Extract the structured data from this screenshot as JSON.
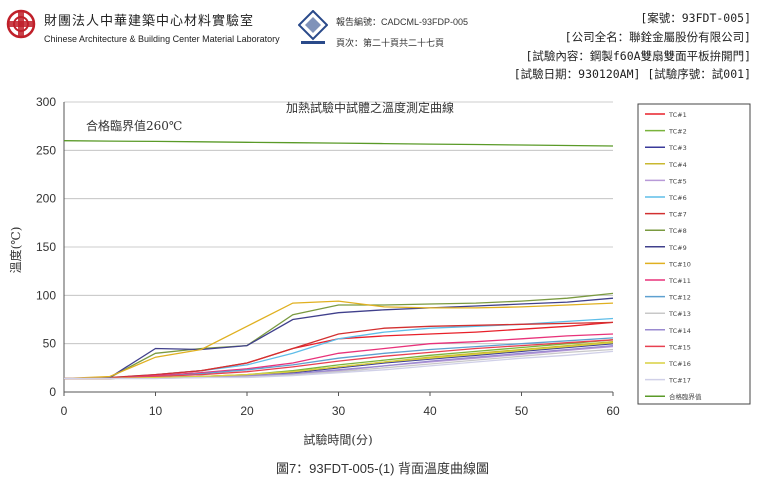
{
  "header": {
    "org_cn": "財團法人中華建築中心材料實驗室",
    "org_en": "Chinese Architecture & Building Center Material Laboratory",
    "report_no": "報告編號：CADCML-93FDP-005",
    "page_info": "頁次：第二十頁共二十七頁",
    "case_no": "[案號：93FDT-005]",
    "company": "[公司全名：聯銓金屬股份有限公司]",
    "test_content": "[試驗內容：鋼製f60A雙扇雙面平板拚開門]",
    "test_date": "[試驗日期：930120AM] [試驗序號：試001]"
  },
  "caption": "圖7：93FDT-005-(1) 背面溫度曲線圖",
  "colors": {
    "grid": "#bbbbbb",
    "axis": "#555555",
    "limit": "#5a9a28"
  },
  "chart_data": {
    "type": "line",
    "title": "加熱試驗中試體之溫度測定曲線",
    "xlabel": "試驗時間(分)",
    "ylabel": "溫度(℃)",
    "xlim": [
      0,
      60
    ],
    "ylim": [
      0,
      300
    ],
    "xticks": [
      0,
      10,
      20,
      30,
      40,
      50,
      60
    ],
    "yticks": [
      0,
      50,
      100,
      150,
      200,
      250,
      300
    ],
    "grid": "horizontal",
    "legend_position": "right",
    "annotation": "合格臨界值260℃",
    "x": [
      0,
      5,
      10,
      15,
      20,
      25,
      30,
      35,
      40,
      45,
      50,
      55,
      60
    ],
    "series": [
      {
        "name": "TC#1",
        "color": "#e8202a",
        "values": [
          14,
          14,
          18,
          22,
          30,
          45,
          55,
          58,
          60,
          62,
          65,
          68,
          72
        ]
      },
      {
        "name": "TC#2",
        "color": "#7ab33c",
        "values": [
          14,
          14,
          15,
          16,
          18,
          22,
          28,
          33,
          38,
          42,
          46,
          50,
          54
        ]
      },
      {
        "name": "TC#3",
        "color": "#3a3a9a",
        "values": [
          14,
          14,
          15,
          16,
          17,
          20,
          25,
          30,
          34,
          38,
          42,
          46,
          50
        ]
      },
      {
        "name": "TC#4",
        "color": "#c9b830",
        "values": [
          14,
          14,
          15,
          16,
          18,
          21,
          26,
          31,
          36,
          40,
          44,
          48,
          52
        ]
      },
      {
        "name": "TC#5",
        "color": "#b89ad8",
        "values": [
          14,
          14,
          15,
          15,
          16,
          18,
          22,
          27,
          31,
          35,
          39,
          43,
          47
        ]
      },
      {
        "name": "TC#6",
        "color": "#5fbde8",
        "values": [
          14,
          15,
          18,
          22,
          28,
          40,
          55,
          62,
          66,
          68,
          70,
          73,
          76
        ]
      },
      {
        "name": "TC#7",
        "color": "#d23030",
        "values": [
          14,
          15,
          18,
          22,
          30,
          45,
          60,
          66,
          68,
          69,
          70,
          71,
          72
        ]
      },
      {
        "name": "TC#8",
        "color": "#7a9a40",
        "values": [
          14,
          15,
          40,
          45,
          48,
          80,
          90,
          90,
          91,
          92,
          94,
          97,
          102
        ]
      },
      {
        "name": "TC#9",
        "color": "#40408c",
        "values": [
          14,
          15,
          45,
          44,
          48,
          75,
          82,
          85,
          87,
          89,
          91,
          93,
          97
        ]
      },
      {
        "name": "TC#10",
        "color": "#e0b020",
        "values": [
          14,
          16,
          36,
          44,
          68,
          92,
          94,
          88,
          87,
          87,
          88,
          90,
          92
        ]
      },
      {
        "name": "TC#11",
        "color": "#e8327a",
        "values": [
          14,
          14,
          17,
          20,
          24,
          30,
          40,
          45,
          50,
          52,
          55,
          58,
          60
        ]
      },
      {
        "name": "TC#12",
        "color": "#5ea0d0",
        "values": [
          14,
          14,
          16,
          19,
          23,
          28,
          35,
          40,
          44,
          47,
          50,
          53,
          56
        ]
      },
      {
        "name": "TC#13",
        "color": "#c8c8c8",
        "values": [
          14,
          14,
          14,
          15,
          16,
          18,
          21,
          25,
          29,
          33,
          37,
          41,
          44
        ]
      },
      {
        "name": "TC#14",
        "color": "#9a8ad0",
        "values": [
          14,
          14,
          15,
          16,
          17,
          19,
          23,
          27,
          32,
          36,
          40,
          44,
          48
        ]
      },
      {
        "name": "TC#15",
        "color": "#e84050",
        "values": [
          14,
          14,
          16,
          18,
          21,
          26,
          32,
          37,
          41,
          45,
          48,
          51,
          54
        ]
      },
      {
        "name": "TC#16",
        "color": "#d8d040",
        "values": [
          14,
          14,
          15,
          16,
          18,
          21,
          26,
          31,
          35,
          39,
          43,
          47,
          51
        ]
      },
      {
        "name": "TC#17",
        "color": "#d0d0e8",
        "values": [
          14,
          14,
          14,
          15,
          15,
          17,
          20,
          23,
          27,
          31,
          35,
          38,
          42
        ]
      },
      {
        "name": "合格臨界值",
        "color": "#5a9a28",
        "values": [
          260,
          259.6,
          259.2,
          258.8,
          258.3,
          257.9,
          257.5,
          257,
          256.5,
          256,
          255.5,
          255,
          254.5
        ]
      }
    ]
  }
}
